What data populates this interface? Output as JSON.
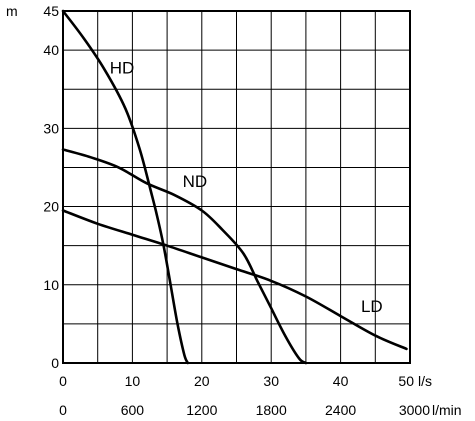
{
  "chart_data": {
    "type": "line",
    "ylabel": "m",
    "xlabel": "l/s",
    "x2label": "l/min",
    "xlim": [
      0,
      50
    ],
    "ylim": [
      0,
      45
    ],
    "grid": true,
    "x_ticks": [
      0,
      10,
      20,
      30,
      40,
      50
    ],
    "x_tick_labels": [
      "0",
      "10",
      "20",
      "30",
      "40",
      "50"
    ],
    "x_grid_step": 5,
    "x2_ticks": [
      0,
      10,
      20,
      30,
      40,
      50
    ],
    "x2_tick_labels": [
      "0",
      "600",
      "1200",
      "1800",
      "2400",
      "3000"
    ],
    "y_ticks": [
      0,
      10,
      20,
      30,
      40,
      45
    ],
    "y_tick_labels": [
      "0",
      "10",
      "20",
      "30",
      "40",
      "45"
    ],
    "y_grid_step": 5,
    "series": [
      {
        "name": "HD",
        "label_at": [
          8.5,
          37
        ],
        "points": [
          [
            0,
            45
          ],
          [
            3,
            41.5
          ],
          [
            6,
            37.5
          ],
          [
            9,
            32.5
          ],
          [
            11,
            27.5
          ],
          [
            12.5,
            22.5
          ],
          [
            13.5,
            19
          ],
          [
            14.5,
            15
          ],
          [
            15.5,
            10
          ],
          [
            16.5,
            5
          ],
          [
            17.5,
            1
          ],
          [
            18,
            0
          ]
        ]
      },
      {
        "name": "ND",
        "label_at": [
          19,
          22.5
        ],
        "points": [
          [
            0,
            27.3
          ],
          [
            4,
            26.3
          ],
          [
            8,
            25
          ],
          [
            12,
            23
          ],
          [
            16,
            21.5
          ],
          [
            20,
            19.5
          ],
          [
            23,
            17
          ],
          [
            26,
            14
          ],
          [
            28,
            10.5
          ],
          [
            30,
            7
          ],
          [
            32,
            3.5
          ],
          [
            34,
            0.6
          ],
          [
            35,
            0
          ]
        ]
      },
      {
        "name": "LD",
        "label_at": [
          44.5,
          6.5
        ],
        "points": [
          [
            0,
            19.5
          ],
          [
            5,
            17.8
          ],
          [
            10,
            16.4
          ],
          [
            15,
            15
          ],
          [
            20,
            13.5
          ],
          [
            25,
            12
          ],
          [
            30,
            10.5
          ],
          [
            35,
            8.5
          ],
          [
            40,
            6
          ],
          [
            45,
            3.5
          ],
          [
            49.5,
            1.8
          ]
        ]
      }
    ]
  }
}
